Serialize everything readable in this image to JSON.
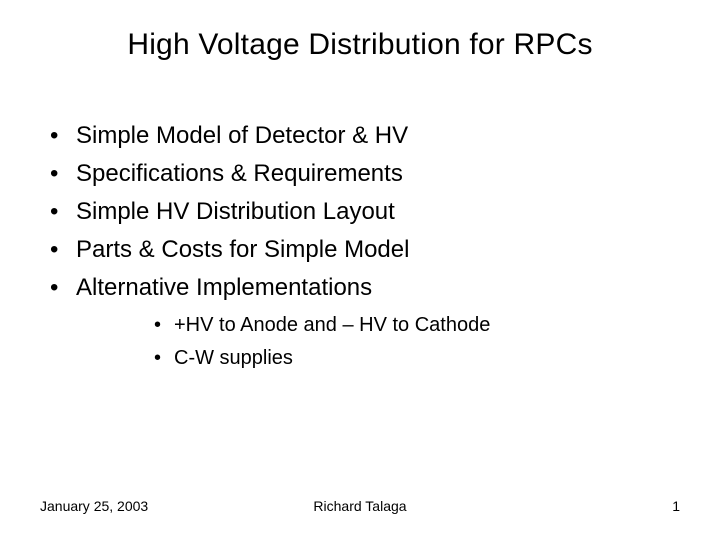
{
  "slide": {
    "title": "High Voltage Distribution for RPCs",
    "bullets": [
      "Simple Model of Detector & HV",
      "Specifications & Requirements",
      "Simple HV Distribution Layout",
      "Parts & Costs for Simple Model",
      "Alternative Implementations"
    ],
    "sub_bullets": [
      "+HV to Anode and – HV to Cathode",
      "C-W supplies"
    ],
    "footer": {
      "date": "January 25, 2003",
      "author": "Richard Talaga",
      "page": "1"
    },
    "style": {
      "background_color": "#ffffff",
      "text_color": "#000000",
      "title_fontsize": 30,
      "bullet_fontsize": 24,
      "sub_bullet_fontsize": 20,
      "footer_fontsize": 14,
      "font_family": "Arial"
    }
  }
}
